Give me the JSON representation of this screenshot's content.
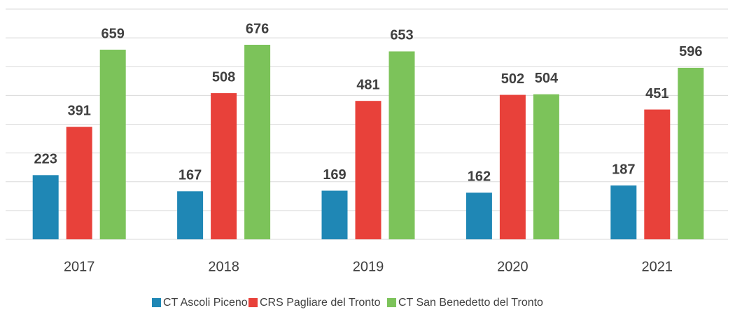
{
  "chart_data": {
    "type": "bar",
    "categories": [
      "2017",
      "2018",
      "2019",
      "2020",
      "2021"
    ],
    "series": [
      {
        "name": "CT Ascoli Piceno",
        "color": "#1f87b5",
        "values": [
          223,
          167,
          169,
          162,
          187
        ]
      },
      {
        "name": "CRS Pagliare del Tronto",
        "color": "#e8413a",
        "values": [
          391,
          508,
          481,
          502,
          451
        ]
      },
      {
        "name": "CT San Benedetto del Tronto",
        "color": "#7cc35a",
        "values": [
          659,
          676,
          653,
          504,
          596
        ]
      }
    ],
    "ylim": [
      0,
      800
    ],
    "yticks": [
      0,
      100,
      200,
      300,
      400,
      500,
      600,
      700,
      800
    ],
    "grid": true,
    "legend": "bottom"
  }
}
